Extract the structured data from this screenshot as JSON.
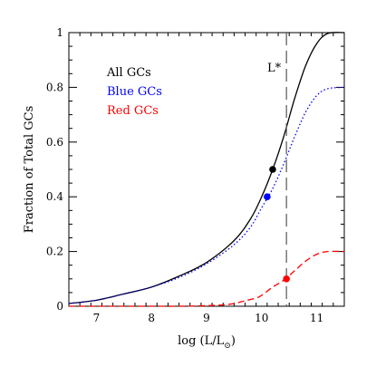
{
  "chart_data": {
    "type": "line",
    "xlabel": "log (L/L",
    "xlabel_sub": "⊙",
    "xlabel_close": ")",
    "ylabel": "Fraction of Total GCs",
    "xlim": [
      6.5,
      11.5
    ],
    "ylim": [
      0,
      1
    ],
    "xticks": [
      7,
      8,
      9,
      10,
      11
    ],
    "yticks": [
      0,
      0.2,
      0.4,
      0.6,
      0.8,
      1
    ],
    "xtick_labels": [
      "7",
      "8",
      "9",
      "10",
      "11"
    ],
    "ytick_labels": [
      "0",
      "0.2",
      "0.4",
      "0.6",
      "0.8",
      "1"
    ],
    "grid": false,
    "legend_position": "top-left",
    "series": [
      {
        "name": "All GCs",
        "color": "#000000",
        "style": "solid",
        "x": [
          6.5,
          7.0,
          7.5,
          8.0,
          8.5,
          9.0,
          9.5,
          9.8,
          10.0,
          10.2,
          10.4,
          10.6,
          10.8,
          11.0,
          11.2,
          11.5
        ],
        "y": [
          0.01,
          0.022,
          0.045,
          0.07,
          0.11,
          0.16,
          0.24,
          0.32,
          0.4,
          0.5,
          0.62,
          0.76,
          0.88,
          0.96,
          0.997,
          1.0
        ]
      },
      {
        "name": "Blue GCs",
        "color": "#0000ff",
        "style": "dotted",
        "x": [
          6.5,
          7.0,
          7.5,
          8.0,
          8.5,
          9.0,
          9.5,
          9.8,
          10.0,
          10.2,
          10.4,
          10.6,
          10.8,
          11.0,
          11.2,
          11.5
        ],
        "y": [
          0.01,
          0.022,
          0.045,
          0.07,
          0.105,
          0.155,
          0.225,
          0.29,
          0.36,
          0.43,
          0.52,
          0.62,
          0.71,
          0.77,
          0.795,
          0.8
        ]
      },
      {
        "name": "Red GCs",
        "color": "#ff0000",
        "style": "dashed",
        "x": [
          6.5,
          7.0,
          7.5,
          8.0,
          8.5,
          9.0,
          9.3,
          9.5,
          9.7,
          9.9,
          10.0,
          10.2,
          10.4,
          10.6,
          10.8,
          11.0,
          11.2,
          11.5
        ],
        "y": [
          0.0,
          0.0,
          0.0,
          0.0,
          0.0,
          0.002,
          0.005,
          0.01,
          0.02,
          0.03,
          0.04,
          0.07,
          0.095,
          0.13,
          0.165,
          0.19,
          0.2,
          0.2
        ]
      }
    ],
    "markers": [
      {
        "series": "All GCs",
        "x": 10.2,
        "y": 0.5,
        "color": "#000000"
      },
      {
        "series": "Blue GCs",
        "x": 10.1,
        "y": 0.4,
        "color": "#0000ff"
      },
      {
        "series": "Red GCs",
        "x": 10.45,
        "y": 0.1,
        "color": "#ff0000"
      }
    ],
    "vertical_line": {
      "x": 10.45,
      "label": "L*"
    }
  }
}
